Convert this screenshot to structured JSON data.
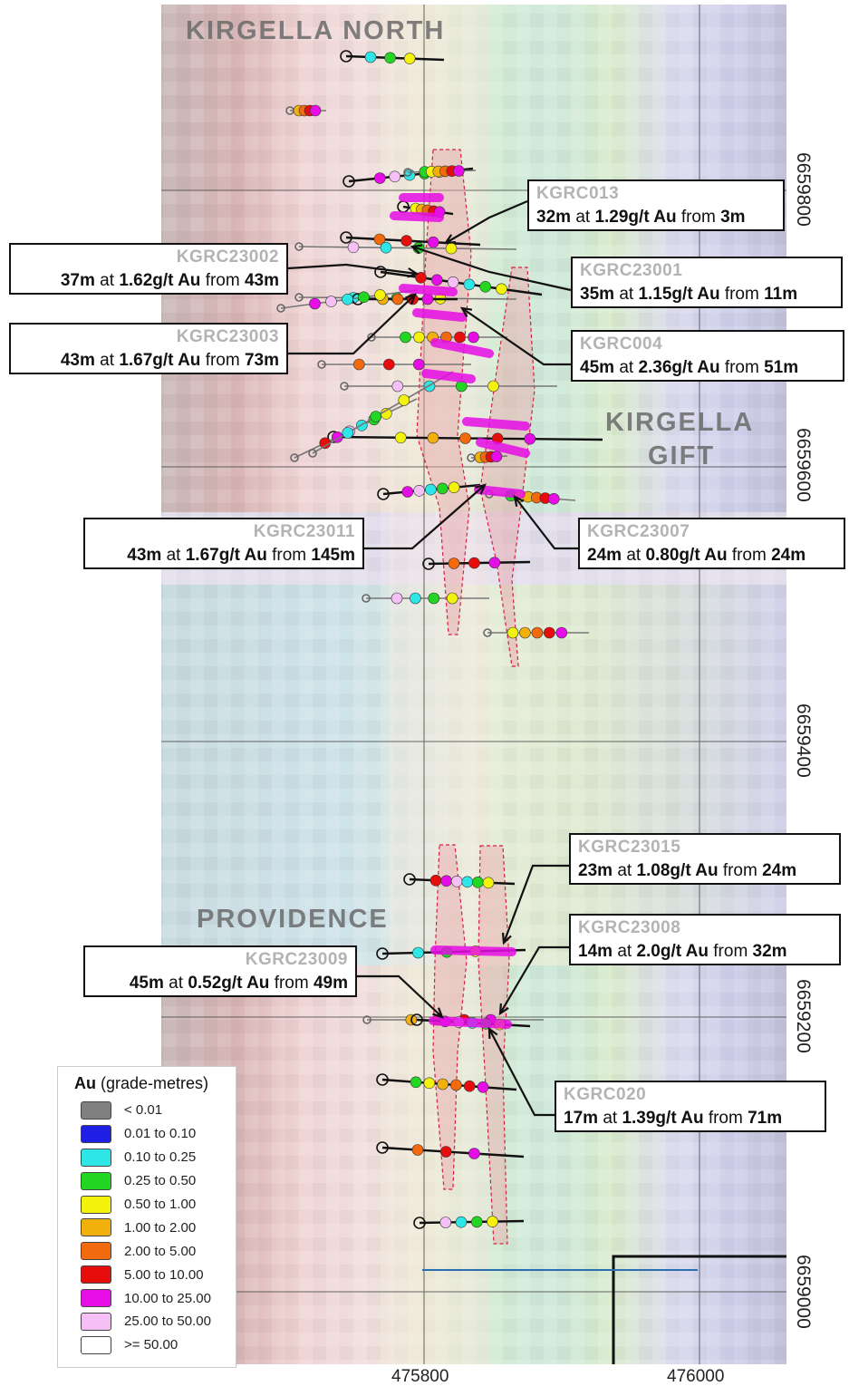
{
  "prospects": {
    "north": "KIRGELLA NORTH",
    "gift_line1": "KIRGELLA",
    "gift_line2": "GIFT",
    "providence": "PROVIDENCE"
  },
  "northings": [
    "6659800",
    "6659600",
    "6659400",
    "6659200",
    "6659000"
  ],
  "eastings": [
    "475800",
    "476000"
  ],
  "callouts": [
    {
      "hole": "KGRC013",
      "interval": "32m",
      "grade": "1.29g/t Au",
      "from_word": "from",
      "from": "3m"
    },
    {
      "hole": "KGRC23002",
      "interval": "37m",
      "grade": "1.62g/t Au",
      "from_word": "from",
      "from": "43m"
    },
    {
      "hole": "KGRC23001",
      "interval": "35m",
      "grade": "1.15g/t Au",
      "from_word": "from",
      "from": "11m"
    },
    {
      "hole": "KGRC23003",
      "interval": "43m",
      "grade": "1.67g/t Au",
      "from_word": "from",
      "from": "73m"
    },
    {
      "hole": "KGRC004",
      "interval": "45m",
      "grade": "2.36g/t Au",
      "from_word": "from",
      "from": "51m"
    },
    {
      "hole": "KGRC23011",
      "interval": "43m",
      "grade": "1.67g/t Au",
      "from_word": "from",
      "from": "145m"
    },
    {
      "hole": "KGRC23007",
      "interval": "24m",
      "grade": "0.80g/t Au",
      "from_word": "from",
      "from": "24m"
    },
    {
      "hole": "KGRC23015",
      "interval": "23m",
      "grade": "1.08g/t Au",
      "from_word": "from",
      "from": "24m"
    },
    {
      "hole": "KGRC23008",
      "interval": "14m",
      "grade": "2.0g/t Au",
      "from_word": "from",
      "from": "32m"
    },
    {
      "hole": "KGRC23009",
      "interval": "45m",
      "grade": "0.52g/t Au",
      "from_word": "from",
      "from": "49m"
    },
    {
      "hole": "KGRC020",
      "interval": "17m",
      "grade": "1.39g/t Au",
      "from_word": "from",
      "from": "71m"
    }
  ],
  "legend": {
    "title_bold": "Au",
    "title_rest": " (grade-metres)",
    "items": [
      {
        "label": "< 0.01",
        "color": "#808080"
      },
      {
        "label": "0.01 to 0.10",
        "color": "#1f1fe6"
      },
      {
        "label": "0.10 to 0.25",
        "color": "#2ee6e6"
      },
      {
        "label": "0.25 to 0.50",
        "color": "#22d622"
      },
      {
        "label": "0.50 to 1.00",
        "color": "#f2f20d"
      },
      {
        "label": "1.00 to 2.00",
        "color": "#f2b00d"
      },
      {
        "label": "2.00 to 5.00",
        "color": "#f26a0d"
      },
      {
        "label": "5.00 to 10.00",
        "color": "#e60d0d"
      },
      {
        "label": "10.00 to 25.00",
        "color": "#e60de6"
      },
      {
        "label": "25.00 to 50.00",
        "color": "#f5c0f5"
      },
      {
        "label": ">= 50.00",
        "color": "#ffffff"
      }
    ]
  }
}
